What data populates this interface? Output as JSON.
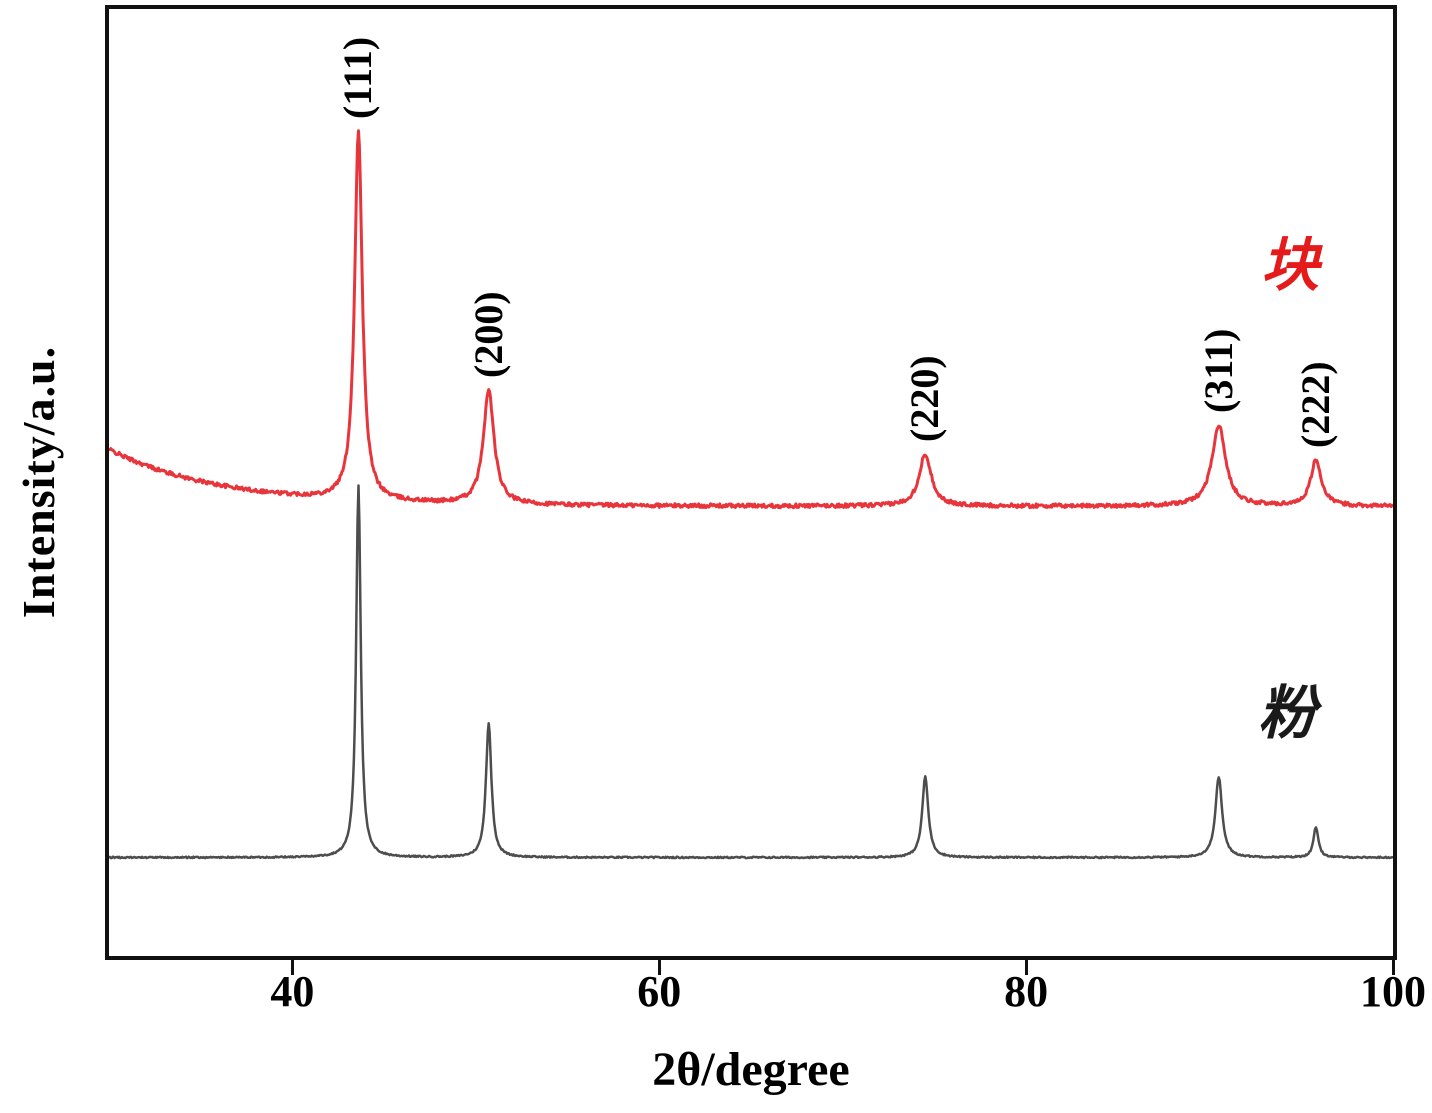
{
  "figure": {
    "background": "#ffffff",
    "border_color": "#111111"
  },
  "chart_data": {
    "type": "line",
    "title": "",
    "xlabel": "2θ/degree",
    "ylabel": "Intensity/a.u.",
    "xlim": [
      30,
      100
    ],
    "x_ticks": [
      40,
      60,
      80,
      100
    ],
    "y_axis": "arbitrary units, no ticks",
    "grid": false,
    "legend_position": "right, inline text labels",
    "peak_annotations": [
      {
        "label": "(111)",
        "two_theta": 43.6
      },
      {
        "label": "(200)",
        "two_theta": 50.7
      },
      {
        "label": "(220)",
        "two_theta": 74.5
      },
      {
        "label": "(311)",
        "two_theta": 90.5
      },
      {
        "label": "(222)",
        "two_theta": 95.8
      }
    ],
    "series": [
      {
        "name": "块",
        "color": "#e8353c",
        "legend_color": "#e51a1a",
        "legend_pos": {
          "x": 1290,
          "y": 260
        },
        "baseline": 0.475,
        "background_amp": 0.06,
        "background_decay": 6,
        "noise": 0.004,
        "stroke_width": 3,
        "peaks": [
          {
            "center": 43.6,
            "height": 0.39,
            "width": 0.25
          },
          {
            "center": 50.7,
            "height": 0.12,
            "width": 0.35
          },
          {
            "center": 74.5,
            "height": 0.055,
            "width": 0.4
          },
          {
            "center": 90.5,
            "height": 0.085,
            "width": 0.45
          },
          {
            "center": 95.8,
            "height": 0.048,
            "width": 0.35
          }
        ]
      },
      {
        "name": "粉",
        "color": "#4d4d4d",
        "legend_color": "#1a1a1a",
        "legend_pos": {
          "x": 1287,
          "y": 708
        },
        "baseline": 0.104,
        "background_amp": 0,
        "background_decay": 1,
        "noise": 0.0015,
        "stroke_width": 2.5,
        "peaks": [
          {
            "center": 43.6,
            "height": 0.393,
            "width": 0.15
          },
          {
            "center": 50.7,
            "height": 0.142,
            "width": 0.18
          },
          {
            "center": 74.5,
            "height": 0.085,
            "width": 0.2
          },
          {
            "center": 90.5,
            "height": 0.085,
            "width": 0.22
          },
          {
            "center": 95.8,
            "height": 0.032,
            "width": 0.16
          }
        ]
      }
    ]
  }
}
